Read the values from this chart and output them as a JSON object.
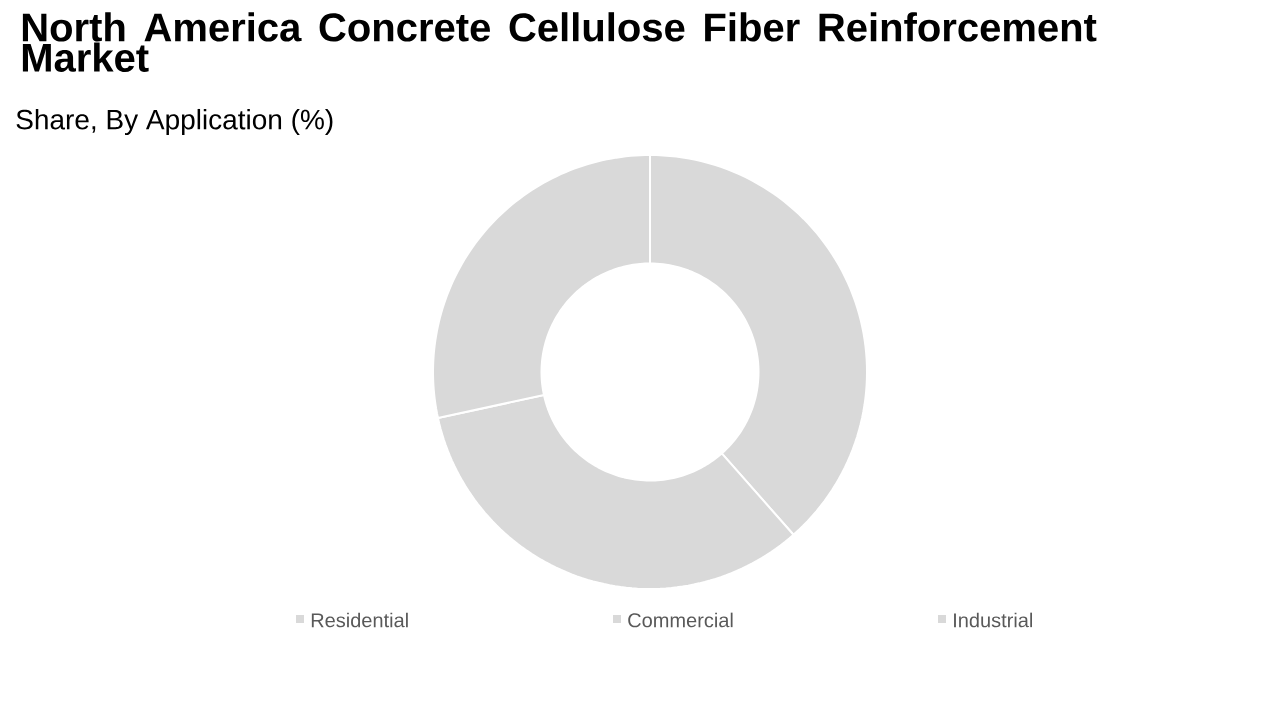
{
  "chart_data": {
    "type": "donut",
    "title": "North America Concrete Cellulose Fiber Reinforcement Market",
    "subtitle": "Share, By Application (%)",
    "categories": [
      "Residential",
      "Commercial",
      "Industrial"
    ],
    "values": [
      38.5,
      33.1,
      28.4
    ],
    "colors": [
      "#d9d9d9",
      "#d9d9d9",
      "#d9d9d9"
    ],
    "legend": "bottom"
  }
}
